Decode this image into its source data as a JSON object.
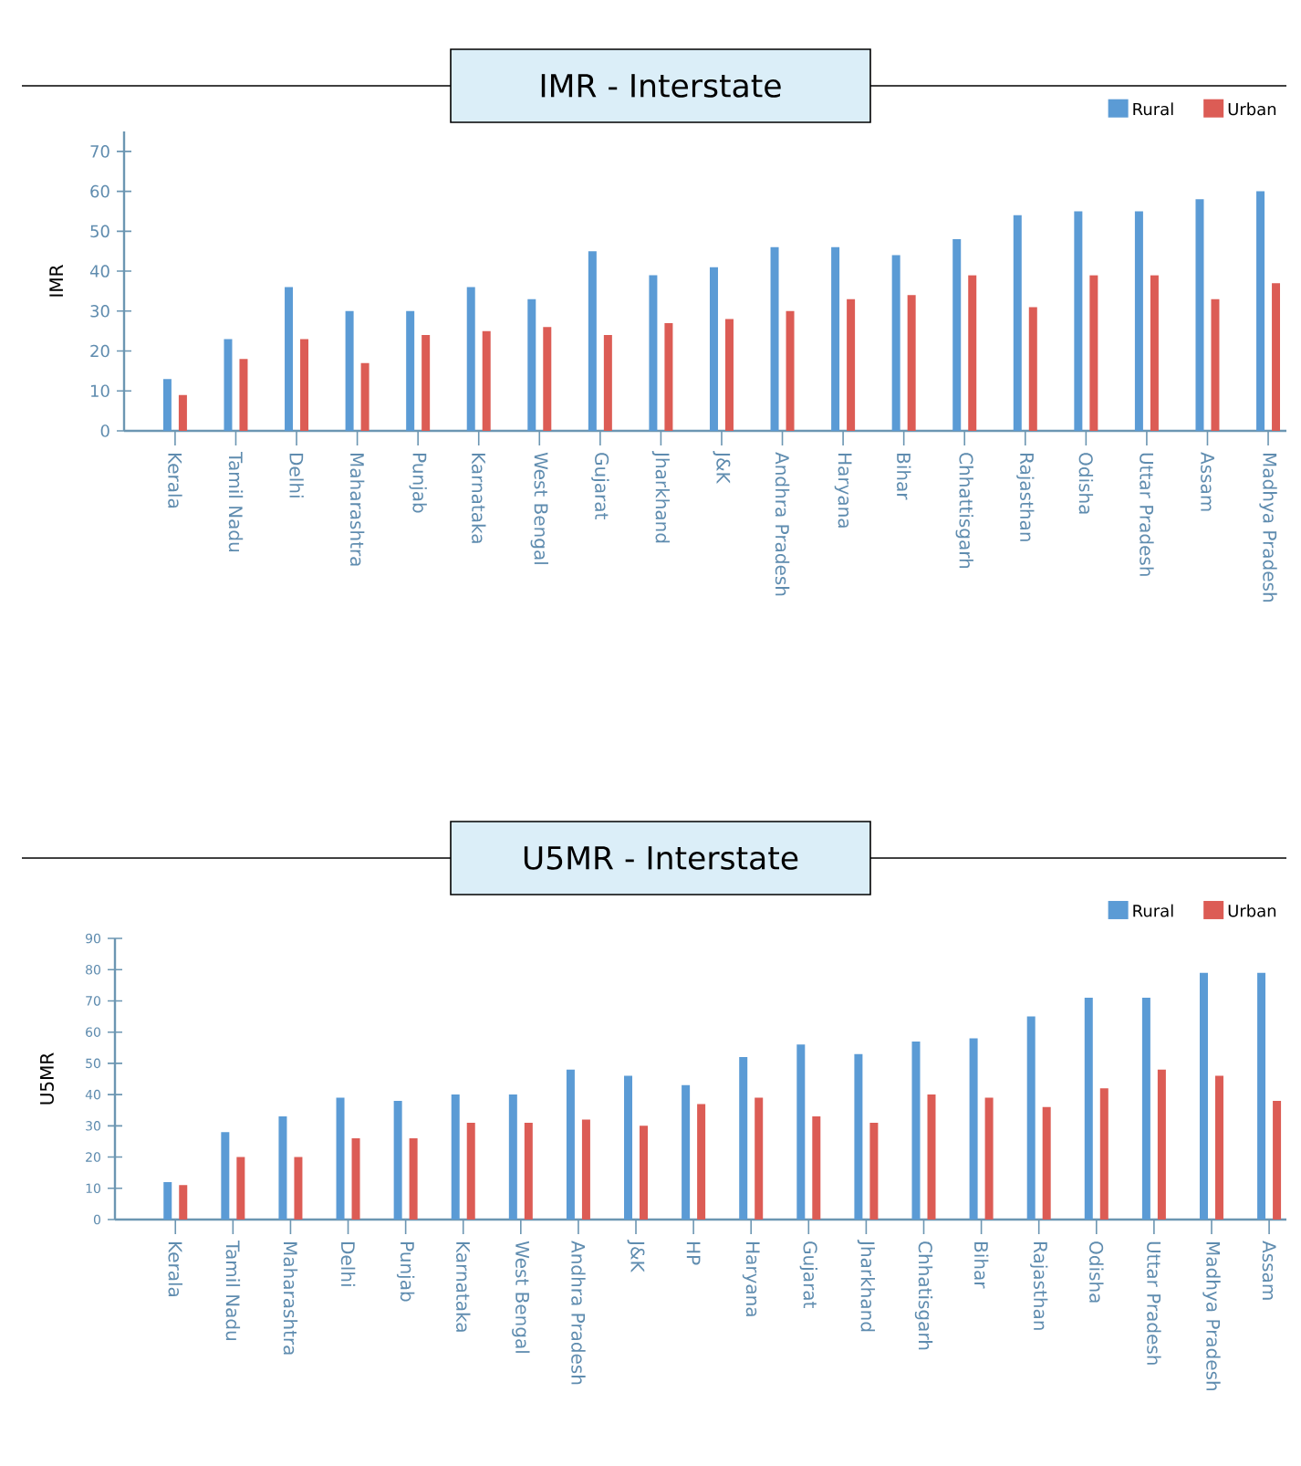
{
  "chart_data": [
    {
      "type": "bar",
      "title": "IMR - Interstate",
      "ylabel": "IMR",
      "categories": [
        "Kerala",
        "Tamil Nadu",
        "Delhi",
        "Maharashtra",
        "Punjab",
        "Karnataka",
        "West Bengal",
        "Gujarat",
        "Jharkhand",
        "J&K",
        "Andhra Pradesh",
        "Haryana",
        "Bihar",
        "Chhattisgarh",
        "Rajasthan",
        "Odisha",
        "Uttar Pradesh",
        "Assam",
        "Madhya Pradesh"
      ],
      "series": [
        {
          "name": "Rural",
          "color": "#5b9bd5",
          "values": [
            13,
            23,
            36,
            30,
            30,
            36,
            33,
            45,
            39,
            41,
            46,
            46,
            44,
            48,
            54,
            55,
            55,
            58,
            60
          ]
        },
        {
          "name": "Urban",
          "color": "#dc5c55",
          "values": [
            9,
            18,
            23,
            17,
            24,
            25,
            26,
            24,
            27,
            28,
            30,
            33,
            34,
            39,
            31,
            39,
            39,
            33,
            37
          ]
        }
      ],
      "ylim": [
        0,
        75
      ],
      "yticks": [
        0,
        10,
        20,
        30,
        40,
        50,
        60,
        70
      ],
      "legend": "top right"
    },
    {
      "type": "bar",
      "title": "U5MR - Interstate",
      "ylabel": "U5MR",
      "categories": [
        "Kerala",
        "Tamil Nadu",
        "Maharashtra",
        "Delhi",
        "Punjab",
        "Karnataka",
        "West Bengal",
        "Andhra Pradesh",
        "J&K",
        "HP",
        "Haryana",
        "Gujarat",
        "Jharkhand",
        "Chhatisgarh",
        "Bihar",
        "Rajasthan",
        "Odisha",
        "Uttar Pradesh",
        "Madhya Pradesh",
        "Assam"
      ],
      "series": [
        {
          "name": "Rural",
          "color": "#5b9bd5",
          "values": [
            12,
            28,
            33,
            39,
            38,
            40,
            40,
            48,
            46,
            43,
            52,
            56,
            53,
            57,
            58,
            65,
            71,
            71,
            79,
            79
          ]
        },
        {
          "name": "Urban",
          "color": "#dc5c55",
          "values": [
            11,
            20,
            20,
            26,
            26,
            31,
            31,
            32,
            30,
            37,
            39,
            33,
            31,
            40,
            39,
            36,
            42,
            48,
            46,
            38
          ]
        }
      ],
      "ylim": [
        0,
        90
      ],
      "yticks": [
        0,
        10,
        20,
        30,
        40,
        50,
        60,
        70,
        80,
        90
      ],
      "legend": "top right"
    }
  ]
}
